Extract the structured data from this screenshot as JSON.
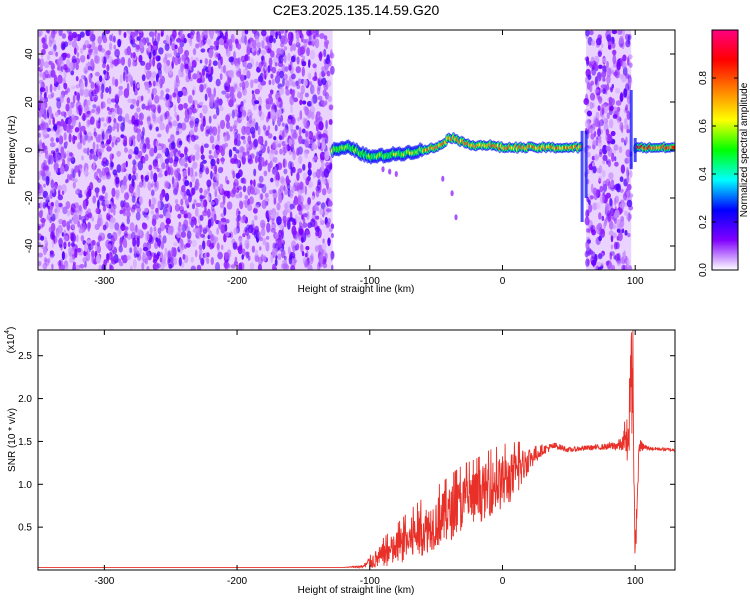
{
  "title": "C2E3.2025.135.14.59.G20",
  "chart_data": [
    {
      "type": "heatmap",
      "title": "C2E3.2025.135.14.59.G20",
      "xlabel": "Height of straight line (km)",
      "ylabel": "Frequency (Hz)",
      "xlim": [
        -350,
        130
      ],
      "ylim": [
        -50,
        50
      ],
      "x_ticks": [
        -300,
        -200,
        -100,
        0,
        100
      ],
      "x_tick_labels": [
        "-300",
        "-200",
        "-100",
        "0",
        "100"
      ],
      "y_ticks": [
        -40,
        -20,
        0,
        20,
        40
      ],
      "y_tick_labels": [
        "-40",
        "-20",
        "0",
        "20",
        "40"
      ],
      "colorbar": {
        "label": "Normalized spectral amplitude",
        "range": [
          0,
          1
        ],
        "ticks": [
          0.0,
          0.2,
          0.4,
          0.6,
          0.8
        ],
        "tick_labels": [
          "0.0",
          "0.2",
          "0.4",
          "0.6",
          "0.8"
        ],
        "colors": [
          "#ffffff",
          "#8000ff",
          "#0000ff",
          "#00ffff",
          "#00ff00",
          "#ffff00",
          "#ff8000",
          "#ff0000",
          "#ff0080"
        ]
      },
      "regions": [
        {
          "x_range": [
            -350,
            -128
          ],
          "content": "broadband noise",
          "level": 0.15
        },
        {
          "x_range": [
            -128,
            60
          ],
          "content": "signal line",
          "level": 0.8
        },
        {
          "x_range": [
            63,
            97
          ],
          "content": "broadband noise",
          "level": 0.15
        },
        {
          "x_range": [
            100,
            130
          ],
          "content": "signal line",
          "level": 0.9
        }
      ],
      "signal_center_hz": [
        [
          -128,
          0
        ],
        [
          -115,
          1
        ],
        [
          -100,
          -3
        ],
        [
          -85,
          -2
        ],
        [
          -70,
          -1
        ],
        [
          -60,
          0
        ],
        [
          -50,
          1
        ],
        [
          -45,
          3
        ],
        [
          -40,
          5
        ],
        [
          -35,
          5
        ],
        [
          -30,
          3
        ],
        [
          -20,
          2
        ],
        [
          -10,
          2
        ],
        [
          0,
          1
        ],
        [
          10,
          1
        ],
        [
          30,
          1
        ],
        [
          50,
          1
        ],
        [
          60,
          1
        ],
        [
          100,
          1
        ],
        [
          130,
          1
        ]
      ]
    },
    {
      "type": "line",
      "xlabel": "Height of straight line (km)",
      "ylabel": "SNR (10 * v/v)",
      "y_scale_label": "(x10",
      "y_scale_exp": "4",
      "y_scale": 10000,
      "xlim": [
        -350,
        130
      ],
      "ylim": [
        0,
        28000
      ],
      "x_ticks": [
        -300,
        -200,
        -100,
        0,
        100
      ],
      "x_tick_labels": [
        "-300",
        "-200",
        "-100",
        "0",
        "100"
      ],
      "y_ticks": [
        5000,
        10000,
        15000,
        20000,
        25000
      ],
      "y_tick_labels": [
        "0.5",
        "1.0",
        "1.5",
        "2.0",
        "2.5"
      ],
      "color": "#e83028",
      "series": [
        {
          "x": [
            -350,
            -300,
            -200,
            -150,
            -120,
            -105,
            -100,
            -90,
            -80,
            -70,
            -60,
            -50,
            -40,
            -30,
            -20,
            -10,
            0,
            10,
            20,
            30,
            40,
            50,
            60,
            70,
            80,
            90,
            95,
            98,
            100,
            103,
            110,
            120,
            130
          ],
          "values": [
            300,
            300,
            300,
            300,
            300,
            400,
            900,
            1600,
            2500,
            3500,
            4500,
            5500,
            6500,
            7800,
            8500,
            9500,
            10200,
            11000,
            13000,
            14000,
            14500,
            14000,
            14200,
            14300,
            14400,
            14600,
            15500,
            22000,
            1500,
            14500,
            14200,
            14100,
            14000
          ],
          "noise": [
            0,
            0,
            0,
            0,
            0,
            200,
            800,
            1500,
            2000,
            2500,
            2800,
            3000,
            3200,
            3200,
            3200,
            3200,
            3200,
            2800,
            1500,
            600,
            400,
            300,
            300,
            300,
            400,
            800,
            3000,
            6000,
            2000,
            800,
            200,
            200,
            200
          ]
        }
      ]
    }
  ]
}
